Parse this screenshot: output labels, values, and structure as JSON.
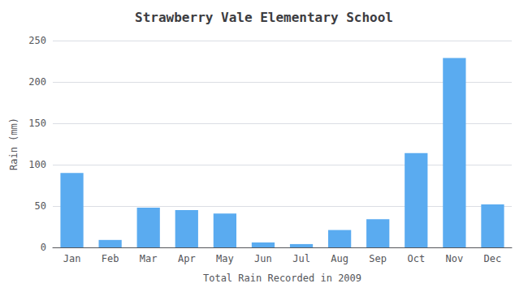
{
  "chart_data": {
    "type": "bar",
    "title": "Strawberry Vale Elementary School",
    "xlabel": "Total Rain Recorded in 2009",
    "ylabel": "Rain (mm)",
    "categories": [
      "Jan",
      "Feb",
      "Mar",
      "Apr",
      "May",
      "Jun",
      "Jul",
      "Aug",
      "Sep",
      "Oct",
      "Nov",
      "Dec"
    ],
    "values": [
      90,
      9,
      48,
      45,
      41,
      6,
      4,
      21,
      34,
      114,
      229,
      52
    ],
    "color": "#5aabf0",
    "ylim": [
      0,
      250
    ],
    "yticks": [
      0,
      50,
      100,
      150,
      200,
      250
    ],
    "grid": true
  }
}
